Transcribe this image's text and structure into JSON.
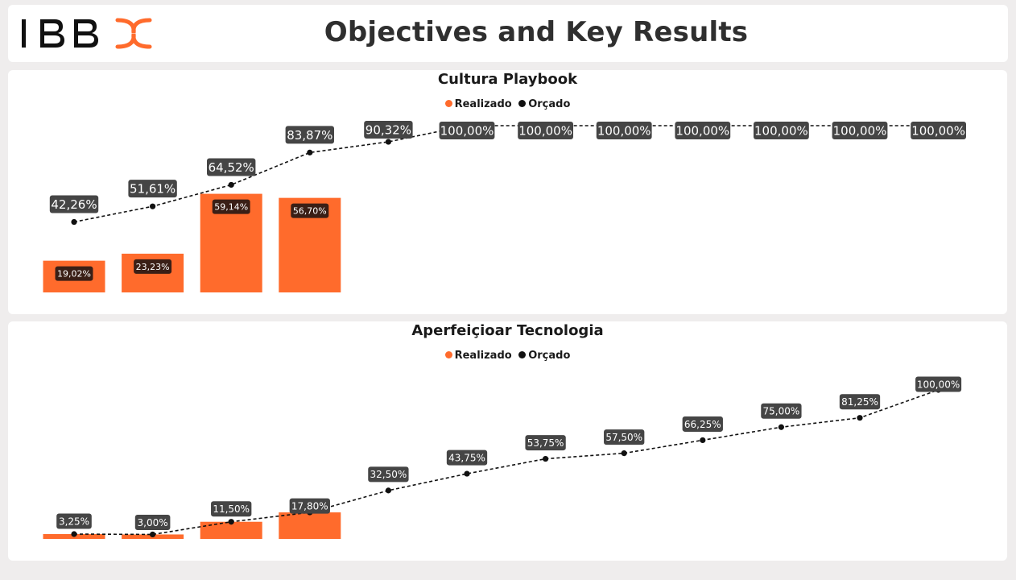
{
  "header": {
    "logo_text": "IBBX",
    "title": "Objectives and Key Results"
  },
  "colors": {
    "realizado": "#ff6b2c",
    "orcado": "#111111",
    "label_bg": "#454545",
    "bar_label_bg": "#3a1f16"
  },
  "chart_data": [
    {
      "type": "bar",
      "title": "Cultura Playbook",
      "legend": [
        "Realizado",
        "Orçado"
      ],
      "legend_position": "top-center",
      "grid": false,
      "ylim": [
        0,
        100
      ],
      "series": [
        {
          "name": "Realizado",
          "type": "bar",
          "values": [
            19.02,
            23.23,
            59.14,
            56.7
          ],
          "labels": [
            "19,02%",
            "23,23%",
            "59,14%",
            "56,70%"
          ]
        },
        {
          "name": "Orçado",
          "type": "line",
          "values": [
            42.26,
            51.61,
            64.52,
            83.87,
            90.32,
            100,
            100,
            100,
            100,
            100,
            100,
            100
          ],
          "labels": [
            "42,26%",
            "51,61%",
            "64,52%",
            "83,87%",
            "90,32%",
            "100,00%",
            "100,00%",
            "100,00%",
            "100,00%",
            "100,00%",
            "100,00%",
            "100,00%"
          ]
        }
      ]
    },
    {
      "type": "bar",
      "title": "Aperfeiçioar Tecnologia",
      "legend": [
        "Realizado",
        "Orçado"
      ],
      "legend_position": "top-center",
      "grid": false,
      "ylim": [
        0,
        100
      ],
      "series": [
        {
          "name": "Realizado",
          "type": "bar",
          "values": [
            3.25,
            3.0,
            11.5,
            17.8
          ]
        },
        {
          "name": "Orçado",
          "type": "line",
          "values": [
            3.25,
            3.0,
            11.5,
            17.8,
            32.5,
            43.75,
            53.75,
            57.5,
            66.25,
            75.0,
            81.25,
            100
          ],
          "labels": [
            "3,25%",
            "3,00%",
            "11,50%",
            "17,80%",
            "32,50%",
            "43,75%",
            "53,75%",
            "57,50%",
            "66,25%",
            "75,00%",
            "81,25%",
            "100,00%"
          ]
        }
      ]
    }
  ]
}
